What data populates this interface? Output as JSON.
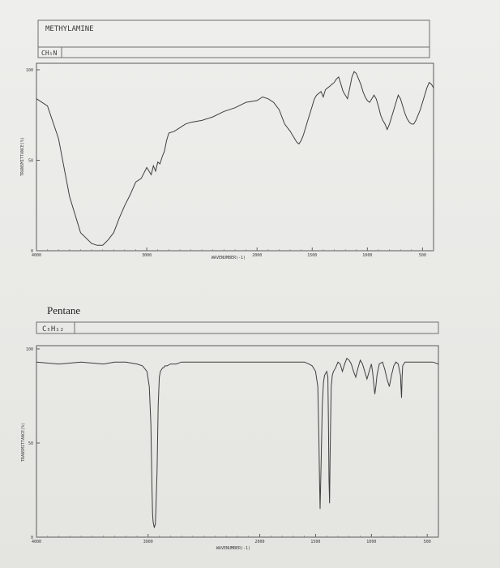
{
  "colors": {
    "ink": "#3f3f3f",
    "paper": "#ecece9",
    "frame": "#6a6a6a"
  },
  "chart_data": [
    {
      "type": "line",
      "compound_name": "METHYLAMINE",
      "formula": "CH₅N",
      "xlabel": "WAVENUMBER(-1)",
      "ylabel": "TRANSMITTANCE(%)",
      "xlim": [
        4000,
        400
      ],
      "ylim": [
        0,
        100
      ],
      "xtick_values": [
        4000,
        3000,
        2000,
        1500,
        1000,
        500
      ],
      "xtick_labels": [
        "4000",
        "3000",
        "2000",
        "1500",
        "1000",
        "500"
      ],
      "ytick_values": [
        0,
        50,
        100
      ],
      "ytick_labels": [
        "0",
        "50",
        "100"
      ],
      "series": [
        {
          "x": [
            4000,
            3900,
            3800,
            3700,
            3600,
            3500,
            3450,
            3400,
            3350,
            3300,
            3250,
            3200,
            3150,
            3100,
            3050,
            3000,
            2960,
            2940,
            2920,
            2900,
            2880,
            2860,
            2840,
            2820,
            2800,
            2750,
            2700,
            2650,
            2600,
            2500,
            2400,
            2300,
            2200,
            2100,
            2000,
            1950,
            1900,
            1850,
            1800,
            1750,
            1700,
            1680,
            1660,
            1640,
            1620,
            1600,
            1580,
            1560,
            1540,
            1520,
            1500,
            1480,
            1460,
            1440,
            1420,
            1400,
            1380,
            1360,
            1340,
            1320,
            1300,
            1280,
            1260,
            1240,
            1220,
            1200,
            1180,
            1160,
            1140,
            1120,
            1100,
            1080,
            1060,
            1040,
            1020,
            1000,
            980,
            960,
            940,
            920,
            900,
            880,
            860,
            840,
            820,
            800,
            780,
            760,
            740,
            720,
            700,
            680,
            660,
            640,
            620,
            600,
            580,
            560,
            540,
            520,
            500,
            480,
            460,
            440,
            420,
            400
          ],
          "y": [
            84,
            80,
            62,
            30,
            10,
            4,
            3,
            3,
            6,
            10,
            18,
            25,
            31,
            38,
            40,
            46,
            42,
            47,
            44,
            49,
            48,
            52,
            55,
            61,
            65,
            66,
            68,
            70,
            71,
            72,
            74,
            77,
            79,
            82,
            83,
            85,
            84,
            82,
            78,
            70,
            66,
            64,
            62,
            60,
            59,
            61,
            64,
            68,
            72,
            76,
            80,
            84,
            86,
            87,
            88,
            85,
            89,
            90,
            91,
            92,
            93,
            95,
            96,
            92,
            88,
            86,
            84,
            90,
            96,
            99,
            98,
            95,
            92,
            88,
            85,
            83,
            82,
            84,
            86,
            84,
            80,
            75,
            72,
            70,
            67,
            70,
            74,
            78,
            82,
            86,
            84,
            80,
            76,
            73,
            71,
            70,
            70,
            72,
            75,
            78,
            82,
            86,
            90,
            93,
            92,
            90
          ]
        }
      ]
    },
    {
      "type": "line",
      "compound_name": "Pentane",
      "formula": "C₅H₁₂",
      "xlabel": "WAVENUMBER(-1)",
      "ylabel": "TRANSMITTANCE(%)",
      "xlim": [
        4000,
        400
      ],
      "ylim": [
        0,
        100
      ],
      "xtick_values": [
        4000,
        3000,
        2000,
        1500,
        1000,
        500
      ],
      "xtick_labels": [
        "4000",
        "3000",
        "2000",
        "1500",
        "1000",
        "500"
      ],
      "ytick_values": [
        0,
        50,
        100
      ],
      "ytick_labels": [
        "0",
        "50",
        "100"
      ],
      "series": [
        {
          "x": [
            4000,
            3800,
            3600,
            3400,
            3300,
            3200,
            3100,
            3050,
            3010,
            2990,
            2975,
            2965,
            2960,
            2955,
            2945,
            2935,
            2930,
            2920,
            2910,
            2900,
            2890,
            2880,
            2870,
            2860,
            2850,
            2830,
            2800,
            2750,
            2700,
            2650,
            2600,
            2500,
            2400,
            2300,
            2200,
            2100,
            2000,
            1900,
            1800,
            1700,
            1600,
            1560,
            1530,
            1500,
            1480,
            1470,
            1465,
            1460,
            1450,
            1440,
            1430,
            1420,
            1400,
            1390,
            1385,
            1380,
            1375,
            1370,
            1360,
            1350,
            1340,
            1320,
            1300,
            1280,
            1260,
            1240,
            1220,
            1200,
            1180,
            1160,
            1140,
            1120,
            1100,
            1080,
            1060,
            1040,
            1020,
            1000,
            990,
            980,
            970,
            960,
            950,
            930,
            900,
            880,
            860,
            840,
            820,
            800,
            780,
            760,
            740,
            735,
            730,
            725,
            720,
            700,
            650,
            600,
            550,
            500,
            450,
            400
          ],
          "y": [
            93,
            92,
            93,
            92,
            93,
            93,
            92,
            91,
            88,
            80,
            60,
            25,
            12,
            8,
            5,
            7,
            15,
            35,
            70,
            85,
            88,
            89,
            90,
            90,
            91,
            91,
            92,
            92,
            93,
            93,
            93,
            93,
            93,
            93,
            93,
            93,
            93,
            93,
            93,
            93,
            93,
            92,
            91,
            88,
            80,
            50,
            30,
            15,
            40,
            70,
            82,
            86,
            88,
            85,
            60,
            30,
            18,
            45,
            80,
            86,
            88,
            90,
            93,
            92,
            88,
            92,
            95,
            94,
            92,
            88,
            85,
            90,
            94,
            92,
            88,
            84,
            88,
            92,
            88,
            82,
            76,
            80,
            86,
            92,
            93,
            89,
            84,
            80,
            86,
            91,
            93,
            92,
            86,
            80,
            74,
            85,
            91,
            93,
            93,
            93,
            93,
            93,
            93,
            92
          ]
        }
      ]
    }
  ]
}
